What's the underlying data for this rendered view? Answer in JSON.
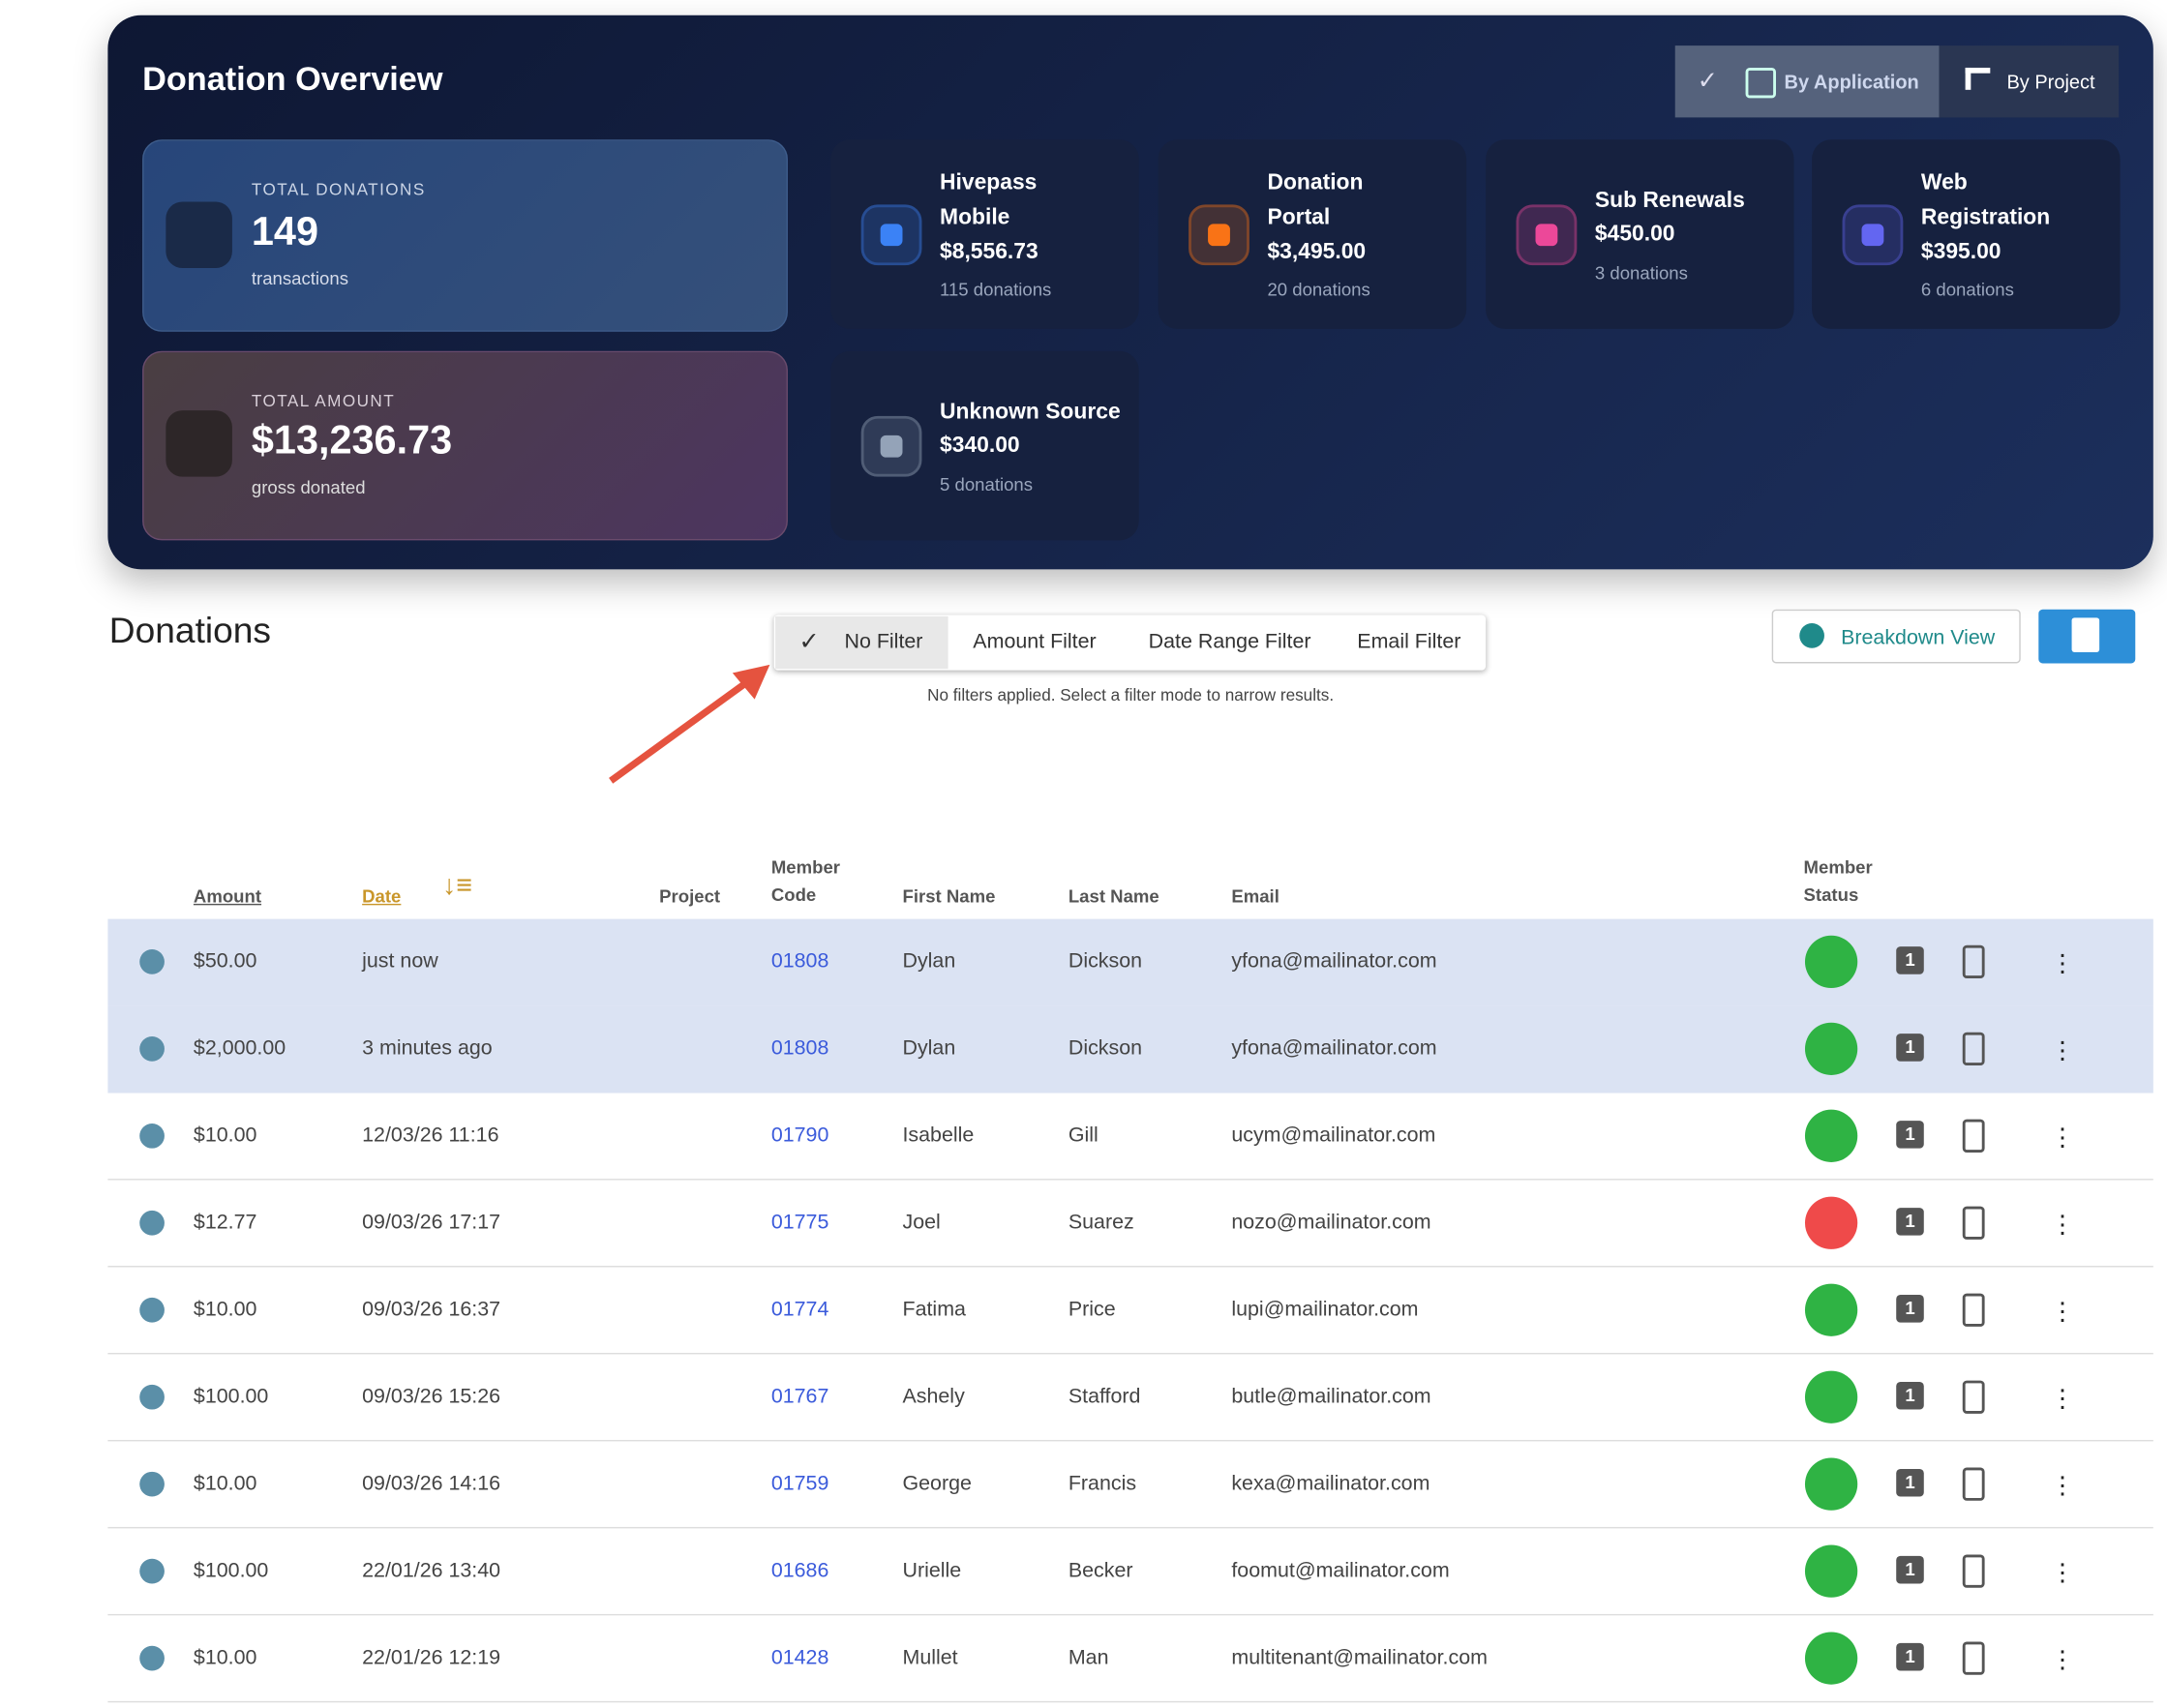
{
  "overview": {
    "title": "Donation Overview",
    "toggle": [
      "By Application",
      "By Project"
    ],
    "total_donations": {
      "label": "TOTAL DONATIONS",
      "value": "149",
      "sub": "transactions"
    },
    "total_amount": {
      "label": "TOTAL AMOUNT",
      "value": "$13,236.73",
      "sub": "gross donated"
    },
    "sources": [
      {
        "name": "Hivepass Mobile",
        "amount": "$8,556.73",
        "count": "115 donations",
        "color": "#3b82f6"
      },
      {
        "name": "Donation Portal",
        "amount": "$3,495.00",
        "count": "20 donations",
        "color": "#f97316"
      },
      {
        "name": "Sub Renewals",
        "amount": "$450.00",
        "count": "3 donations",
        "color": "#ec4899"
      },
      {
        "name": "Web Registration",
        "amount": "$395.00",
        "count": "6 donations",
        "color": "#6366f1"
      },
      {
        "name": "Unknown Source",
        "amount": "$340.00",
        "count": "5 donations",
        "color": "#94a3b8"
      }
    ]
  },
  "donations": {
    "title": "Donations",
    "filters": [
      "No Filter",
      "Amount Filter",
      "Date Range Filter",
      "Email Filter"
    ],
    "hint": "No filters applied. Select a filter mode to narrow results.",
    "breakdown": "Breakdown View",
    "columns": [
      "Amount",
      "Date",
      "Project",
      "Member Code",
      "First Name",
      "Last Name",
      "Email",
      "Member Status"
    ],
    "badge": "1",
    "rows": [
      {
        "amount": "$50.00",
        "date": "just now",
        "code": "01808",
        "first": "Dylan",
        "last": "Dickson",
        "email": "yfona@mailinator.com",
        "status": "active",
        "highlighted": true
      },
      {
        "amount": "$2,000.00",
        "date": "3 minutes ago",
        "code": "01808",
        "first": "Dylan",
        "last": "Dickson",
        "email": "yfona@mailinator.com",
        "status": "active",
        "highlighted": true
      },
      {
        "amount": "$10.00",
        "date": "12/03/26 11:16",
        "code": "01790",
        "first": "Isabelle",
        "last": "Gill",
        "email": "ucym@mailinator.com",
        "status": "active",
        "highlighted": false
      },
      {
        "amount": "$12.77",
        "date": "09/03/26 17:17",
        "code": "01775",
        "first": "Joel",
        "last": "Suarez",
        "email": "nozo@mailinator.com",
        "status": "inactive",
        "highlighted": false
      },
      {
        "amount": "$10.00",
        "date": "09/03/26 16:37",
        "code": "01774",
        "first": "Fatima",
        "last": "Price",
        "email": "lupi@mailinator.com",
        "status": "active",
        "highlighted": false
      },
      {
        "amount": "$100.00",
        "date": "09/03/26 15:26",
        "code": "01767",
        "first": "Ashely",
        "last": "Stafford",
        "email": "butle@mailinator.com",
        "status": "active",
        "highlighted": false
      },
      {
        "amount": "$10.00",
        "date": "09/03/26 14:16",
        "code": "01759",
        "first": "George",
        "last": "Francis",
        "email": "kexa@mailinator.com",
        "status": "active",
        "highlighted": false
      },
      {
        "amount": "$100.00",
        "date": "22/01/26 13:40",
        "code": "01686",
        "first": "Urielle",
        "last": "Becker",
        "email": "foomut@mailinator.com",
        "status": "active",
        "highlighted": false
      },
      {
        "amount": "$10.00",
        "date": "22/01/26 12:19",
        "code": "01428",
        "first": "Mullet",
        "last": "Man",
        "email": "multitenant@mailinator.com",
        "status": "active",
        "highlighted": false
      }
    ]
  }
}
